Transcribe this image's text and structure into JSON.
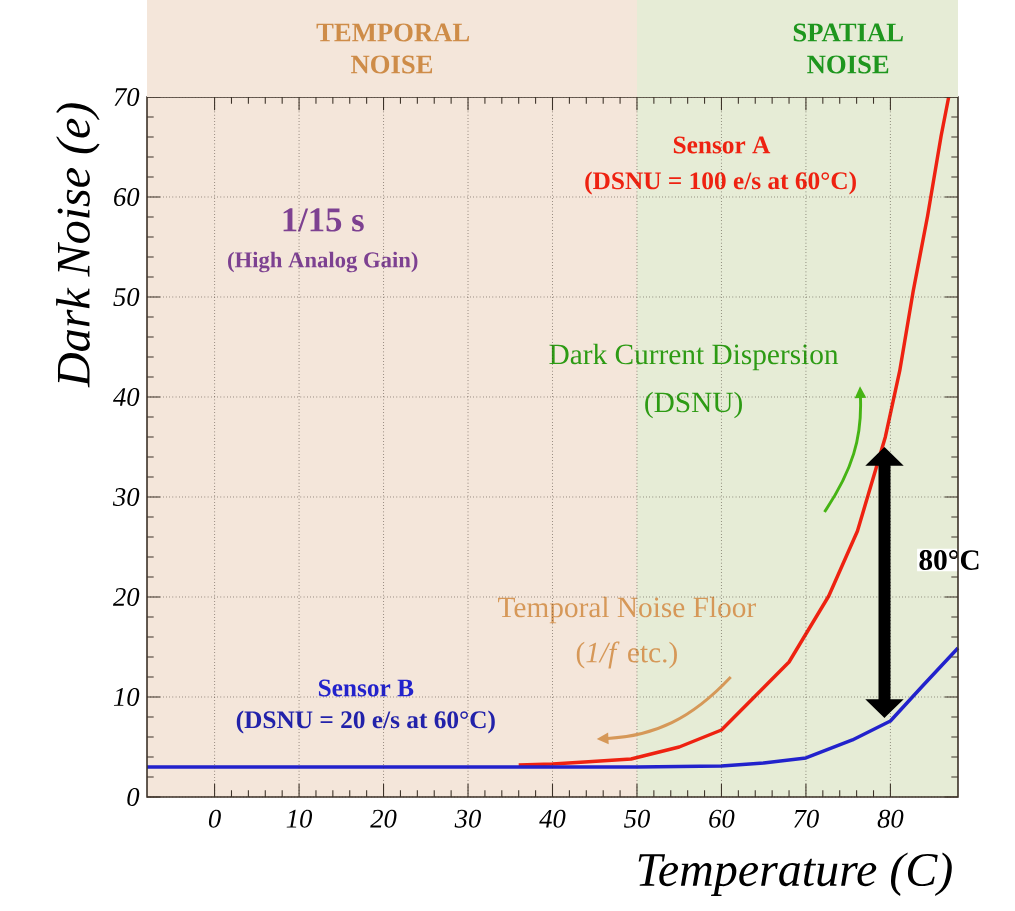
{
  "chart_data": {
    "type": "line",
    "xlabel": "Temperature (C)",
    "ylabel": "Dark Noise (e)",
    "xlim": [
      -8,
      88
    ],
    "ylim": [
      0,
      70
    ],
    "xticks": [
      0,
      10,
      20,
      30,
      40,
      50,
      60,
      70,
      80
    ],
    "yticks": [
      0,
      10,
      20,
      30,
      40,
      50,
      60,
      70
    ],
    "grid": true,
    "series": [
      {
        "name": "Sensor A",
        "color": "#ee2211",
        "x": [
          36,
          40,
          43.8,
          49.3,
          55,
          60,
          68,
          72.7,
          76.1,
          79.4,
          81.1,
          82.7,
          84.4,
          86,
          86.9
        ],
        "values": [
          3.2,
          3.3,
          3.5,
          3.8,
          5,
          6.7,
          13.5,
          20.1,
          26.6,
          36,
          42.6,
          50.6,
          58.1,
          66.1,
          70
        ]
      },
      {
        "name": "Sensor B",
        "color": "#2222cc",
        "x": [
          -8,
          0,
          10,
          20,
          30,
          40,
          50,
          60,
          65,
          70,
          75.5,
          80,
          83.8,
          88
        ],
        "values": [
          3,
          3,
          3,
          3,
          3,
          3,
          3,
          3.1,
          3.4,
          3.9,
          5.7,
          7.6,
          11.1,
          14.9
        ]
      }
    ],
    "bands": [
      {
        "axis": "x",
        "from": -8,
        "to": 50,
        "label": "TEMPORAL NOISE",
        "color": "#f4e6da"
      },
      {
        "axis": "x",
        "from": 50,
        "to": 88,
        "label": "SPATIAL NOISE",
        "color": "#e6ecd6"
      }
    ],
    "annotations": [
      "(DSNU = 100 e/s at 60°C)",
      "(DSNU = 20 e/s at 60°C)",
      "1/15 s",
      "(High Analog Gain)",
      "Dark Current Dispersion",
      "(DSNU)",
      "Temporal Noise Floor",
      "(*1/f* etc.)",
      "80°C"
    ]
  }
}
